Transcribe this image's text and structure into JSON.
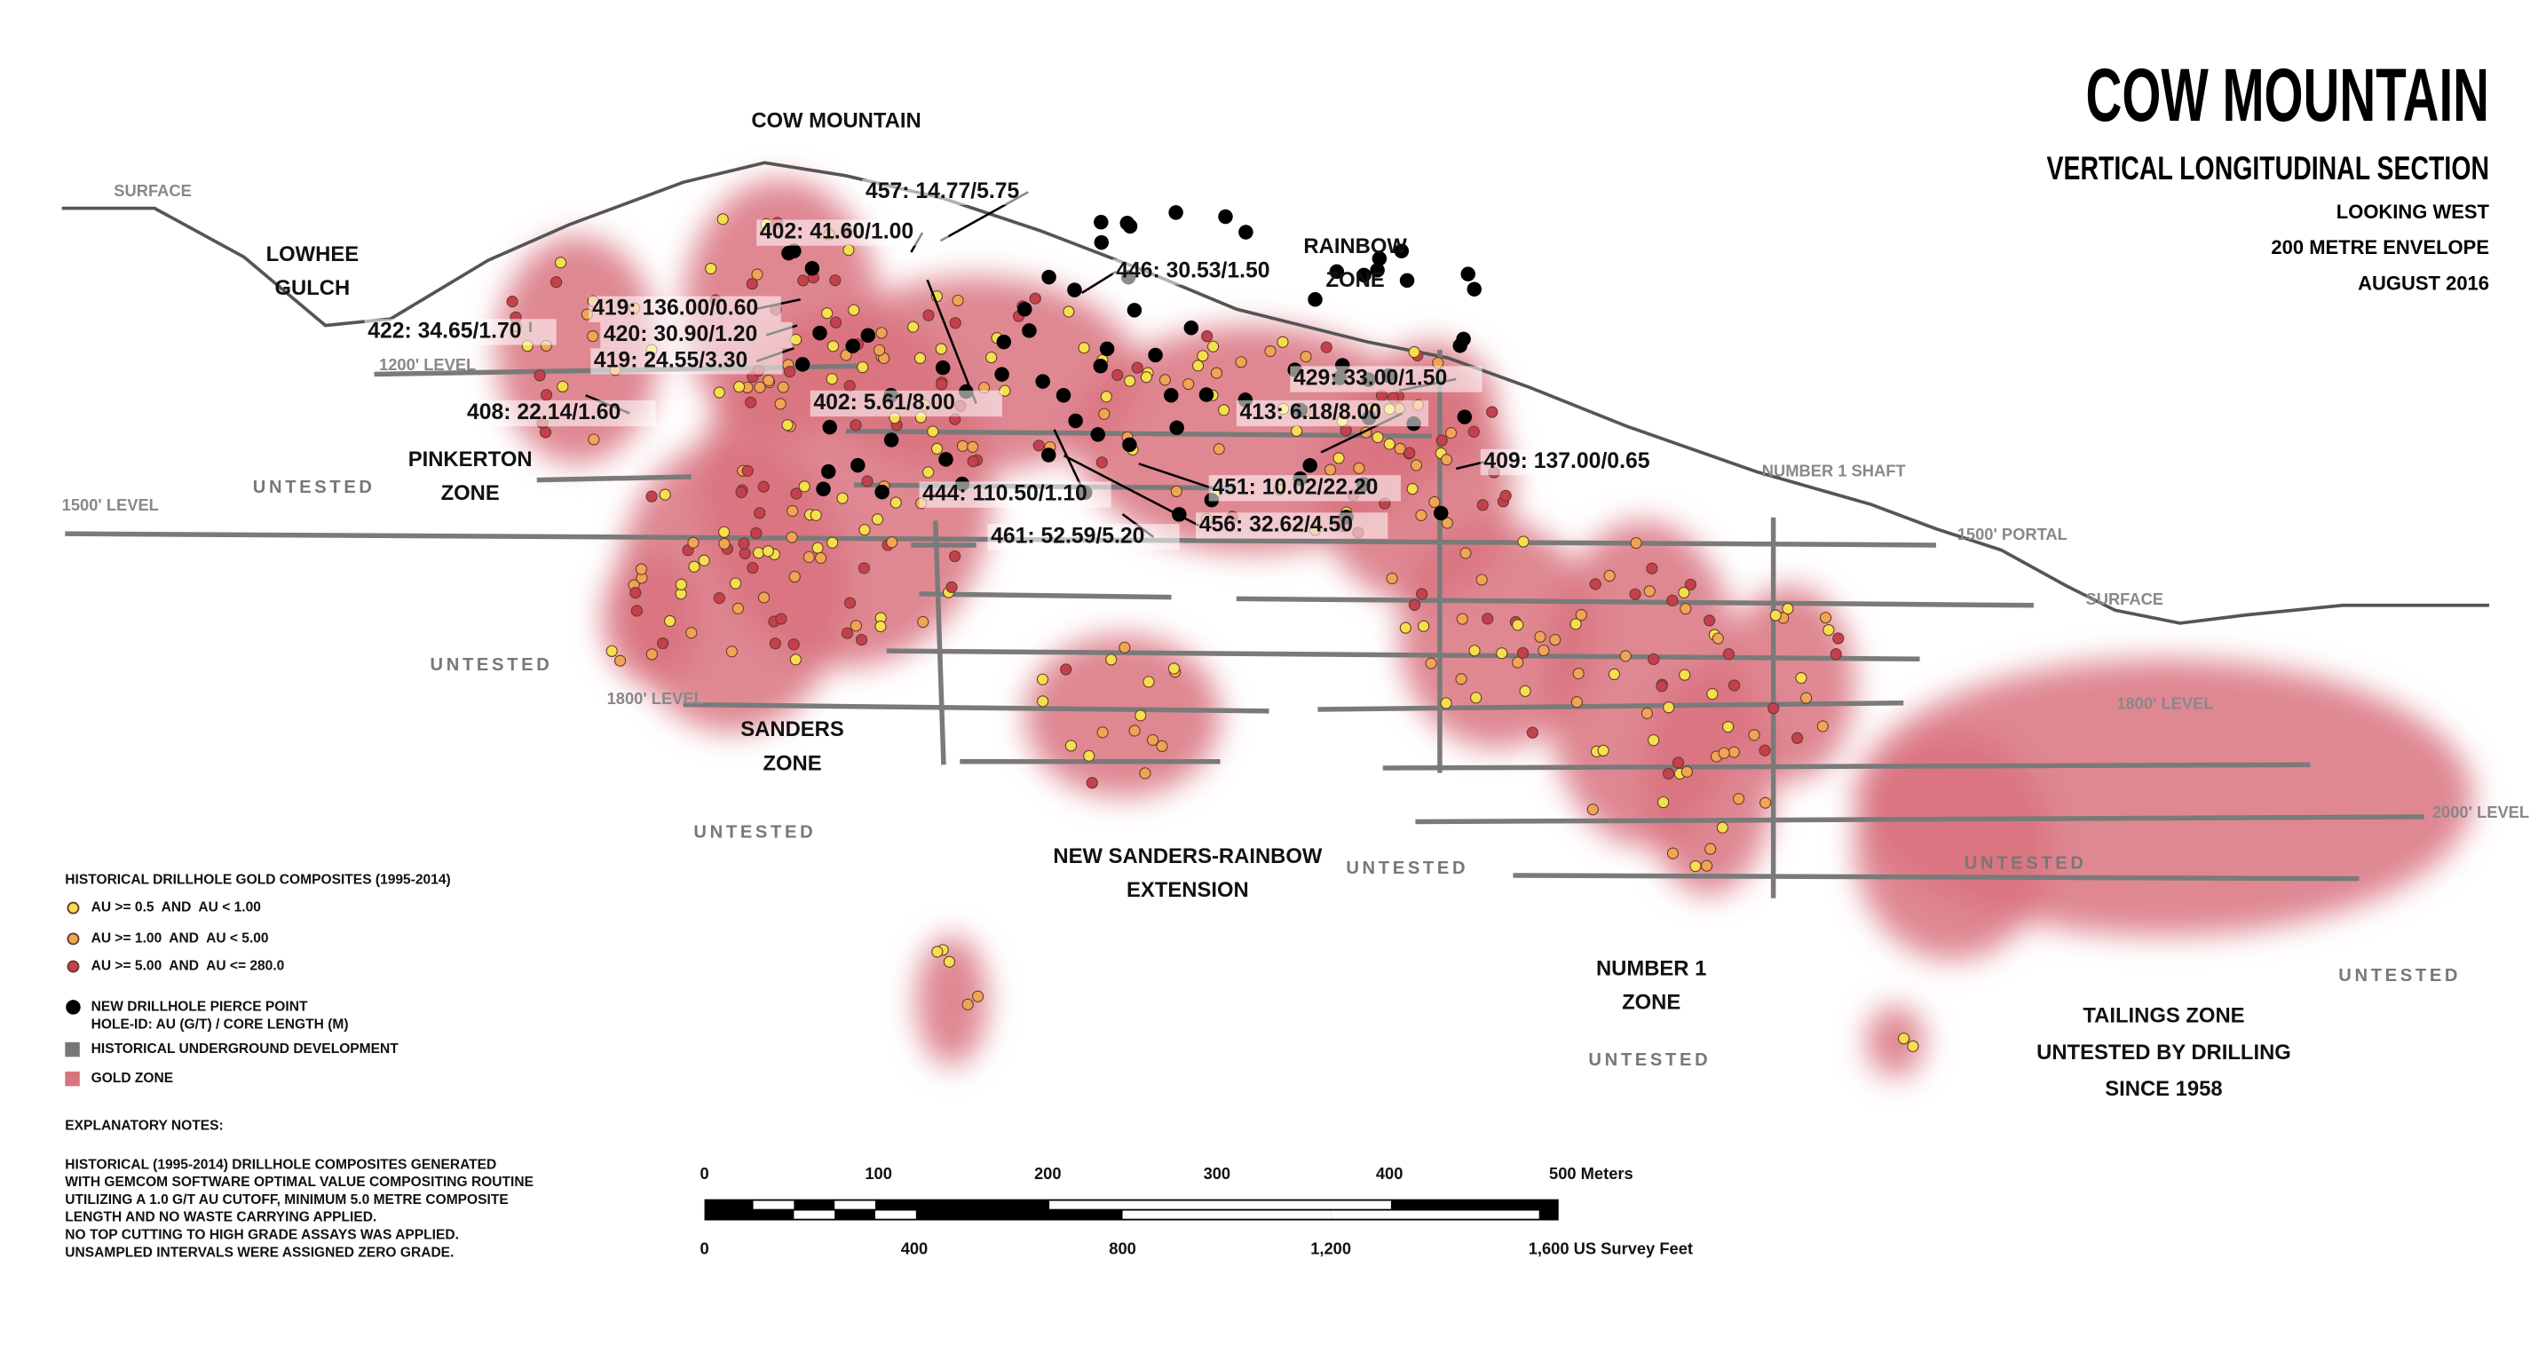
{
  "header": {
    "title": "COW MOUNTAIN",
    "subtitle": "VERTICAL LONGITUDINAL SECTION",
    "info": [
      "LOOKING WEST",
      "200 METRE ENVELOPE",
      "AUGUST 2016"
    ]
  },
  "map_labels": [
    {
      "lines": [
        "COW MOUNTAIN"
      ]
    },
    {
      "lines": [
        "SURFACE"
      ]
    },
    {
      "lines": [
        "LOWHEE",
        "GULCH"
      ]
    },
    {
      "lines": [
        "RAINBOW",
        "ZONE"
      ]
    },
    {
      "lines": [
        "1200' LEVEL"
      ]
    },
    {
      "lines": [
        "PINKERTON",
        "ZONE"
      ]
    },
    {
      "lines": [
        "UNTESTED"
      ]
    },
    {
      "lines": [
        "1500' LEVEL"
      ]
    },
    {
      "lines": [
        "NUMBER 1 SHAFT"
      ]
    },
    {
      "lines": [
        "1500' PORTAL"
      ]
    },
    {
      "lines": [
        "SURFACE"
      ]
    },
    {
      "lines": [
        "UNTESTED"
      ]
    },
    {
      "lines": [
        "1800' LEVEL"
      ]
    },
    {
      "lines": [
        "SANDERS",
        "ZONE"
      ]
    },
    {
      "lines": [
        "UNTESTED"
      ]
    },
    {
      "lines": [
        "NEW SANDERS-RAINBOW",
        "EXTENSION"
      ]
    },
    {
      "lines": [
        "UNTESTED"
      ]
    },
    {
      "lines": [
        "1800' LEVEL"
      ]
    },
    {
      "lines": [
        "2000' LEVEL"
      ]
    },
    {
      "lines": [
        "UNTESTED"
      ]
    },
    {
      "lines": [
        "UNTESTED"
      ]
    },
    {
      "lines": [
        "NUMBER 1",
        "ZONE"
      ]
    },
    {
      "lines": [
        "UNTESTED"
      ]
    },
    {
      "lines": [
        "TAILINGS ZONE",
        "UNTESTED BY DRILLING",
        "SINCE 1958"
      ]
    }
  ],
  "drillhole_labels": [
    "457: 14.77/5.75",
    "402: 41.60/1.00",
    "446: 30.53/1.50",
    "419: 136.00/0.60",
    "420: 30.90/1.20",
    "422: 34.65/1.70",
    "419: 24.55/3.30",
    "402: 5.61/8.00",
    "408: 22.14/1.60",
    "429: 33.00/1.50",
    "413: 6.18/8.00",
    "409: 137.00/0.65",
    "444: 110.50/1.10",
    "451: 10.02/22.20",
    "456: 32.62/4.50",
    "461: 52.59/5.20"
  ],
  "legend": {
    "title": "HISTORICAL DRILLHOLE GOLD COMPOSITES (1995-2014)",
    "items": [
      {
        "lines": [
          "AU >= 0.5  AND  AU < 1.00"
        ]
      },
      {
        "lines": [
          "AU >= 1.00  AND  AU < 5.00"
        ]
      },
      {
        "lines": [
          "AU >= 5.00  AND  AU <= 280.0"
        ]
      },
      {
        "lines": [
          "NEW DRILLHOLE PIERCE POINT",
          "HOLE-ID: AU (G/T) / CORE LENGTH (M)"
        ]
      },
      {
        "lines": [
          "HISTORICAL UNDERGROUND DEVELOPMENT"
        ]
      },
      {
        "lines": [
          "GOLD ZONE"
        ]
      }
    ]
  },
  "notes": {
    "title": "EXPLANATORY NOTES:",
    "lines": [
      "HISTORICAL (1995-2014) DRILLHOLE COMPOSITES GENERATED",
      "WITH GEMCOM SOFTWARE OPTIMAL VALUE COMPOSITING ROUTINE",
      "UTILIZING A 1.0 G/T AU CUTOFF, MINIMUM 5.0 METRE COMPOSITE",
      "LENGTH AND NO WASTE CARRYING APPLIED.",
      "NO TOP CUTTING TO HIGH GRADE ASSAYS WAS APPLIED.",
      "UNSAMPLED INTERVALS WERE ASSIGNED ZERO GRADE."
    ]
  },
  "scale": {
    "meters": [
      "0",
      "100",
      "200",
      "300",
      "400",
      "500 Meters"
    ],
    "feet": [
      "0",
      "400",
      "800",
      "1,200",
      "1,600 US Survey Feet"
    ]
  }
}
